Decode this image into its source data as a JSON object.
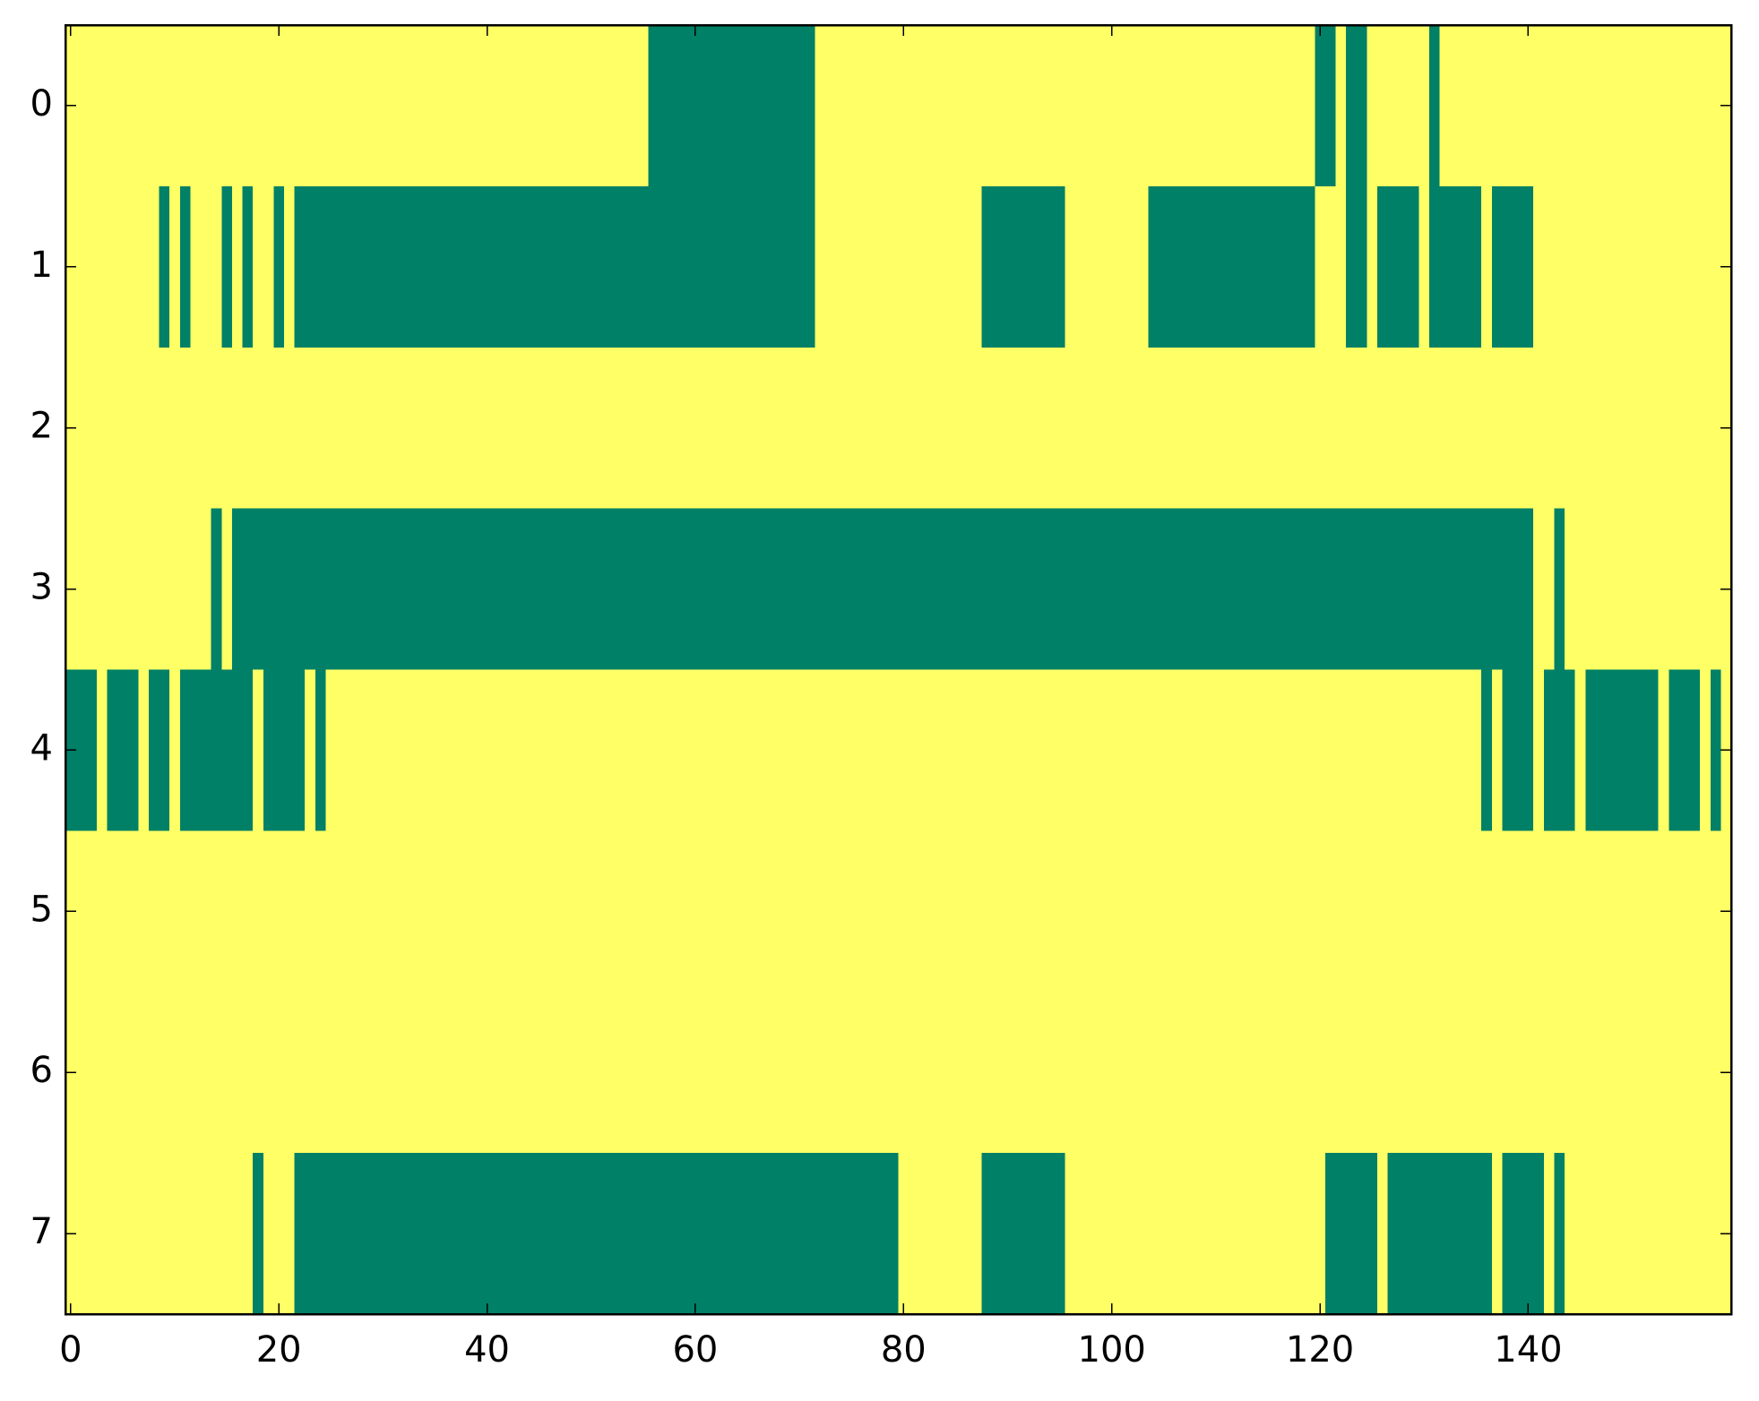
{
  "chart_data": {
    "type": "heatmap",
    "colors": [
      "#ffff66",
      "#008066"
    ],
    "xlim": [
      -0.5,
      159.5
    ],
    "ylim": [
      -0.5,
      7.5
    ],
    "xticks": [
      0,
      20,
      40,
      60,
      80,
      100,
      120,
      140
    ],
    "yticks": [
      0,
      1,
      2,
      3,
      4,
      5,
      6,
      7
    ],
    "z": [
      [
        0,
        0,
        0,
        0,
        0,
        0,
        0,
        0,
        0,
        0,
        0,
        0,
        0,
        0,
        0,
        0,
        0,
        0,
        0,
        0,
        0,
        0,
        0,
        0,
        0,
        0,
        0,
        0,
        0,
        0,
        0,
        0,
        0,
        0,
        0,
        0,
        0,
        0,
        0,
        0,
        0,
        0,
        0,
        0,
        0,
        0,
        0,
        0,
        0,
        0,
        0,
        0,
        0,
        0,
        0,
        0,
        1,
        1,
        1,
        1,
        1,
        1,
        1,
        1,
        1,
        1,
        1,
        1,
        1,
        1,
        1,
        1,
        0,
        0,
        0,
        0,
        0,
        0,
        0,
        0,
        0,
        0,
        0,
        0,
        0,
        0,
        0,
        0,
        0,
        0,
        0,
        0,
        0,
        0,
        0,
        0,
        0,
        0,
        0,
        0,
        0,
        0,
        0,
        0,
        0,
        0,
        0,
        0,
        0,
        0,
        0,
        0,
        0,
        0,
        0,
        0,
        0,
        0,
        0,
        0,
        1,
        1,
        0,
        1,
        1,
        0,
        0,
        0,
        0,
        0,
        0,
        1,
        0,
        0,
        0,
        0,
        0,
        0,
        0,
        0,
        0,
        0,
        0,
        0,
        0,
        0,
        0,
        0,
        0,
        0,
        0,
        0,
        0,
        0,
        0,
        0,
        0,
        0,
        0,
        0
      ],
      [
        0,
        0,
        0,
        0,
        0,
        0,
        0,
        0,
        0,
        1,
        0,
        1,
        0,
        0,
        0,
        1,
        0,
        1,
        0,
        0,
        1,
        0,
        1,
        1,
        1,
        1,
        1,
        1,
        1,
        1,
        1,
        1,
        1,
        1,
        1,
        1,
        1,
        1,
        1,
        1,
        1,
        1,
        1,
        1,
        1,
        1,
        1,
        1,
        1,
        1,
        1,
        1,
        1,
        1,
        1,
        1,
        1,
        1,
        1,
        1,
        1,
        1,
        1,
        1,
        1,
        1,
        1,
        1,
        1,
        1,
        1,
        1,
        0,
        0,
        0,
        0,
        0,
        0,
        0,
        0,
        0,
        0,
        0,
        0,
        0,
        0,
        0,
        0,
        1,
        1,
        1,
        1,
        1,
        1,
        1,
        1,
        0,
        0,
        0,
        0,
        0,
        0,
        0,
        0,
        1,
        1,
        1,
        1,
        1,
        1,
        1,
        1,
        1,
        1,
        1,
        1,
        1,
        1,
        1,
        1,
        0,
        0,
        0,
        1,
        1,
        0,
        1,
        1,
        1,
        1,
        0,
        1,
        1,
        1,
        1,
        1,
        0,
        1,
        1,
        1,
        1,
        0,
        0,
        0,
        0,
        0,
        0,
        0,
        0,
        0,
        0,
        0,
        0,
        0,
        0,
        0,
        0,
        0,
        0,
        0
      ],
      [
        0,
        0,
        0,
        0,
        0,
        0,
        0,
        0,
        0,
        0,
        0,
        0,
        0,
        0,
        0,
        0,
        0,
        0,
        0,
        0,
        0,
        0,
        0,
        0,
        0,
        0,
        0,
        0,
        0,
        0,
        0,
        0,
        0,
        0,
        0,
        0,
        0,
        0,
        0,
        0,
        0,
        0,
        0,
        0,
        0,
        0,
        0,
        0,
        0,
        0,
        0,
        0,
        0,
        0,
        0,
        0,
        0,
        0,
        0,
        0,
        0,
        0,
        0,
        0,
        0,
        0,
        0,
        0,
        0,
        0,
        0,
        0,
        0,
        0,
        0,
        0,
        0,
        0,
        0,
        0,
        0,
        0,
        0,
        0,
        0,
        0,
        0,
        0,
        0,
        0,
        0,
        0,
        0,
        0,
        0,
        0,
        0,
        0,
        0,
        0,
        0,
        0,
        0,
        0,
        0,
        0,
        0,
        0,
        0,
        0,
        0,
        0,
        0,
        0,
        0,
        0,
        0,
        0,
        0,
        0,
        0,
        0,
        0,
        0,
        0,
        0,
        0,
        0,
        0,
        0,
        0,
        0,
        0,
        0,
        0,
        0,
        0,
        0,
        0,
        0,
        0,
        0,
        0,
        0,
        0,
        0,
        0,
        0,
        0,
        0,
        0,
        0,
        0,
        0,
        0,
        0,
        0,
        0,
        0,
        0
      ],
      [
        0,
        0,
        0,
        0,
        0,
        0,
        0,
        0,
        0,
        0,
        0,
        0,
        0,
        0,
        1,
        0,
        1,
        1,
        1,
        1,
        1,
        1,
        1,
        1,
        1,
        1,
        1,
        1,
        1,
        1,
        1,
        1,
        1,
        1,
        1,
        1,
        1,
        1,
        1,
        1,
        1,
        1,
        1,
        1,
        1,
        1,
        1,
        1,
        1,
        1,
        1,
        1,
        1,
        1,
        1,
        1,
        1,
        1,
        1,
        1,
        1,
        1,
        1,
        1,
        1,
        1,
        1,
        1,
        1,
        1,
        1,
        1,
        1,
        1,
        1,
        1,
        1,
        1,
        1,
        1,
        1,
        1,
        1,
        1,
        1,
        1,
        1,
        1,
        1,
        1,
        1,
        1,
        1,
        1,
        1,
        1,
        1,
        1,
        1,
        1,
        1,
        1,
        1,
        1,
        1,
        1,
        1,
        1,
        1,
        1,
        1,
        1,
        1,
        1,
        1,
        1,
        1,
        1,
        1,
        1,
        1,
        1,
        1,
        1,
        1,
        1,
        1,
        1,
        1,
        1,
        1,
        1,
        1,
        1,
        1,
        1,
        1,
        1,
        1,
        1,
        1,
        0,
        0,
        1,
        0,
        0,
        0,
        0,
        0,
        0,
        0,
        0,
        0,
        0,
        0,
        0,
        0,
        0,
        0,
        0
      ],
      [
        1,
        1,
        1,
        0,
        1,
        1,
        1,
        0,
        1,
        1,
        0,
        1,
        1,
        1,
        1,
        1,
        1,
        1,
        0,
        1,
        1,
        1,
        1,
        0,
        1,
        0,
        0,
        0,
        0,
        0,
        0,
        0,
        0,
        0,
        0,
        0,
        0,
        0,
        0,
        0,
        0,
        0,
        0,
        0,
        0,
        0,
        0,
        0,
        0,
        0,
        0,
        0,
        0,
        0,
        0,
        0,
        0,
        0,
        0,
        0,
        0,
        0,
        0,
        0,
        0,
        0,
        0,
        0,
        0,
        0,
        0,
        0,
        0,
        0,
        0,
        0,
        0,
        0,
        0,
        0,
        0,
        0,
        0,
        0,
        0,
        0,
        0,
        0,
        0,
        0,
        0,
        0,
        0,
        0,
        0,
        0,
        0,
        0,
        0,
        0,
        0,
        0,
        0,
        0,
        0,
        0,
        0,
        0,
        0,
        0,
        0,
        0,
        0,
        0,
        0,
        0,
        0,
        0,
        0,
        0,
        0,
        0,
        0,
        0,
        0,
        0,
        0,
        0,
        0,
        0,
        0,
        0,
        0,
        0,
        0,
        0,
        1,
        0,
        1,
        1,
        1,
        0,
        1,
        1,
        1,
        0,
        1,
        1,
        1,
        1,
        1,
        1,
        1,
        0,
        1,
        1,
        1,
        0,
        1,
        0
      ],
      [
        0,
        0,
        0,
        0,
        0,
        0,
        0,
        0,
        0,
        0,
        0,
        0,
        0,
        0,
        0,
        0,
        0,
        0,
        0,
        0,
        0,
        0,
        0,
        0,
        0,
        0,
        0,
        0,
        0,
        0,
        0,
        0,
        0,
        0,
        0,
        0,
        0,
        0,
        0,
        0,
        0,
        0,
        0,
        0,
        0,
        0,
        0,
        0,
        0,
        0,
        0,
        0,
        0,
        0,
        0,
        0,
        0,
        0,
        0,
        0,
        0,
        0,
        0,
        0,
        0,
        0,
        0,
        0,
        0,
        0,
        0,
        0,
        0,
        0,
        0,
        0,
        0,
        0,
        0,
        0,
        0,
        0,
        0,
        0,
        0,
        0,
        0,
        0,
        0,
        0,
        0,
        0,
        0,
        0,
        0,
        0,
        0,
        0,
        0,
        0,
        0,
        0,
        0,
        0,
        0,
        0,
        0,
        0,
        0,
        0,
        0,
        0,
        0,
        0,
        0,
        0,
        0,
        0,
        0,
        0,
        0,
        0,
        0,
        0,
        0,
        0,
        0,
        0,
        0,
        0,
        0,
        0,
        0,
        0,
        0,
        0,
        0,
        0,
        0,
        0,
        0,
        0,
        0,
        0,
        0,
        0,
        0,
        0,
        0,
        0,
        0,
        0,
        0,
        0,
        0,
        0,
        0,
        0,
        0,
        0
      ],
      [
        0,
        0,
        0,
        0,
        0,
        0,
        0,
        0,
        0,
        0,
        0,
        0,
        0,
        0,
        0,
        0,
        0,
        0,
        0,
        0,
        0,
        0,
        0,
        0,
        0,
        0,
        0,
        0,
        0,
        0,
        0,
        0,
        0,
        0,
        0,
        0,
        0,
        0,
        0,
        0,
        0,
        0,
        0,
        0,
        0,
        0,
        0,
        0,
        0,
        0,
        0,
        0,
        0,
        0,
        0,
        0,
        0,
        0,
        0,
        0,
        0,
        0,
        0,
        0,
        0,
        0,
        0,
        0,
        0,
        0,
        0,
        0,
        0,
        0,
        0,
        0,
        0,
        0,
        0,
        0,
        0,
        0,
        0,
        0,
        0,
        0,
        0,
        0,
        0,
        0,
        0,
        0,
        0,
        0,
        0,
        0,
        0,
        0,
        0,
        0,
        0,
        0,
        0,
        0,
        0,
        0,
        0,
        0,
        0,
        0,
        0,
        0,
        0,
        0,
        0,
        0,
        0,
        0,
        0,
        0,
        0,
        0,
        0,
        0,
        0,
        0,
        0,
        0,
        0,
        0,
        0,
        0,
        0,
        0,
        0,
        0,
        0,
        0,
        0,
        0,
        0,
        0,
        0,
        0,
        0,
        0,
        0,
        0,
        0,
        0,
        0,
        0,
        0,
        0,
        0,
        0,
        0,
        0,
        0,
        0
      ],
      [
        0,
        0,
        0,
        0,
        0,
        0,
        0,
        0,
        0,
        0,
        0,
        0,
        0,
        0,
        0,
        0,
        0,
        0,
        1,
        0,
        0,
        0,
        1,
        1,
        1,
        1,
        1,
        1,
        1,
        1,
        1,
        1,
        1,
        1,
        1,
        1,
        1,
        1,
        1,
        1,
        1,
        1,
        1,
        1,
        1,
        1,
        1,
        1,
        1,
        1,
        1,
        1,
        1,
        1,
        1,
        1,
        1,
        1,
        1,
        1,
        1,
        1,
        1,
        1,
        1,
        1,
        1,
        1,
        1,
        1,
        1,
        1,
        1,
        1,
        1,
        1,
        1,
        1,
        1,
        1,
        0,
        0,
        0,
        0,
        0,
        0,
        0,
        0,
        1,
        1,
        1,
        1,
        1,
        1,
        1,
        1,
        0,
        0,
        0,
        0,
        0,
        0,
        0,
        0,
        0,
        0,
        0,
        0,
        0,
        0,
        0,
        0,
        0,
        0,
        0,
        0,
        0,
        0,
        0,
        0,
        0,
        1,
        1,
        1,
        1,
        1,
        0,
        1,
        1,
        1,
        1,
        1,
        1,
        1,
        1,
        1,
        1,
        0,
        1,
        1,
        1,
        1,
        0,
        1,
        0,
        0,
        0,
        0,
        0,
        0,
        0,
        0,
        0,
        0,
        0,
        0,
        0,
        0,
        0,
        0
      ]
    ]
  }
}
